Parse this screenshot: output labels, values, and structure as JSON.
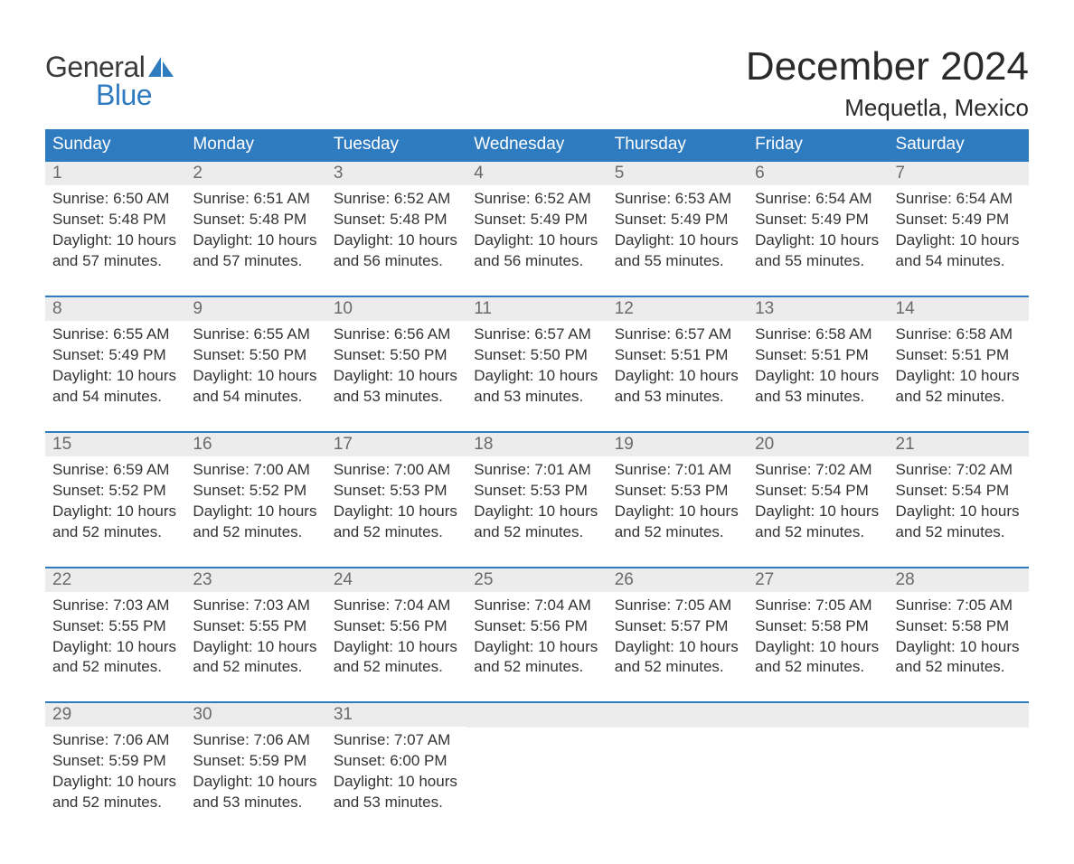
{
  "logo": {
    "text1": "General",
    "text2": "Blue",
    "accent_color": "#2f7bc0"
  },
  "title": "December 2024",
  "location": "Mequetla, Mexico",
  "colors": {
    "header_bg": "#2f7bc0",
    "header_text": "#ffffff",
    "daynum_bg": "#ececec",
    "daynum_text": "#6a6a6a",
    "body_text": "#333333",
    "row_border": "#2f7bc0",
    "page_bg": "#ffffff"
  },
  "typography": {
    "title_fontsize": 44,
    "location_fontsize": 26,
    "header_fontsize": 19,
    "daynum_fontsize": 19,
    "body_fontsize": 17,
    "logo_fontsize": 32
  },
  "weekdays": [
    "Sunday",
    "Monday",
    "Tuesday",
    "Wednesday",
    "Thursday",
    "Friday",
    "Saturday"
  ],
  "weeks": [
    [
      {
        "day": "1",
        "sunrise": "6:50 AM",
        "sunset": "5:48 PM",
        "daylight": "10 hours and 57 minutes."
      },
      {
        "day": "2",
        "sunrise": "6:51 AM",
        "sunset": "5:48 PM",
        "daylight": "10 hours and 57 minutes."
      },
      {
        "day": "3",
        "sunrise": "6:52 AM",
        "sunset": "5:48 PM",
        "daylight": "10 hours and 56 minutes."
      },
      {
        "day": "4",
        "sunrise": "6:52 AM",
        "sunset": "5:49 PM",
        "daylight": "10 hours and 56 minutes."
      },
      {
        "day": "5",
        "sunrise": "6:53 AM",
        "sunset": "5:49 PM",
        "daylight": "10 hours and 55 minutes."
      },
      {
        "day": "6",
        "sunrise": "6:54 AM",
        "sunset": "5:49 PM",
        "daylight": "10 hours and 55 minutes."
      },
      {
        "day": "7",
        "sunrise": "6:54 AM",
        "sunset": "5:49 PM",
        "daylight": "10 hours and 54 minutes."
      }
    ],
    [
      {
        "day": "8",
        "sunrise": "6:55 AM",
        "sunset": "5:49 PM",
        "daylight": "10 hours and 54 minutes."
      },
      {
        "day": "9",
        "sunrise": "6:55 AM",
        "sunset": "5:50 PM",
        "daylight": "10 hours and 54 minutes."
      },
      {
        "day": "10",
        "sunrise": "6:56 AM",
        "sunset": "5:50 PM",
        "daylight": "10 hours and 53 minutes."
      },
      {
        "day": "11",
        "sunrise": "6:57 AM",
        "sunset": "5:50 PM",
        "daylight": "10 hours and 53 minutes."
      },
      {
        "day": "12",
        "sunrise": "6:57 AM",
        "sunset": "5:51 PM",
        "daylight": "10 hours and 53 minutes."
      },
      {
        "day": "13",
        "sunrise": "6:58 AM",
        "sunset": "5:51 PM",
        "daylight": "10 hours and 53 minutes."
      },
      {
        "day": "14",
        "sunrise": "6:58 AM",
        "sunset": "5:51 PM",
        "daylight": "10 hours and 52 minutes."
      }
    ],
    [
      {
        "day": "15",
        "sunrise": "6:59 AM",
        "sunset": "5:52 PM",
        "daylight": "10 hours and 52 minutes."
      },
      {
        "day": "16",
        "sunrise": "7:00 AM",
        "sunset": "5:52 PM",
        "daylight": "10 hours and 52 minutes."
      },
      {
        "day": "17",
        "sunrise": "7:00 AM",
        "sunset": "5:53 PM",
        "daylight": "10 hours and 52 minutes."
      },
      {
        "day": "18",
        "sunrise": "7:01 AM",
        "sunset": "5:53 PM",
        "daylight": "10 hours and 52 minutes."
      },
      {
        "day": "19",
        "sunrise": "7:01 AM",
        "sunset": "5:53 PM",
        "daylight": "10 hours and 52 minutes."
      },
      {
        "day": "20",
        "sunrise": "7:02 AM",
        "sunset": "5:54 PM",
        "daylight": "10 hours and 52 minutes."
      },
      {
        "day": "21",
        "sunrise": "7:02 AM",
        "sunset": "5:54 PM",
        "daylight": "10 hours and 52 minutes."
      }
    ],
    [
      {
        "day": "22",
        "sunrise": "7:03 AM",
        "sunset": "5:55 PM",
        "daylight": "10 hours and 52 minutes."
      },
      {
        "day": "23",
        "sunrise": "7:03 AM",
        "sunset": "5:55 PM",
        "daylight": "10 hours and 52 minutes."
      },
      {
        "day": "24",
        "sunrise": "7:04 AM",
        "sunset": "5:56 PM",
        "daylight": "10 hours and 52 minutes."
      },
      {
        "day": "25",
        "sunrise": "7:04 AM",
        "sunset": "5:56 PM",
        "daylight": "10 hours and 52 minutes."
      },
      {
        "day": "26",
        "sunrise": "7:05 AM",
        "sunset": "5:57 PM",
        "daylight": "10 hours and 52 minutes."
      },
      {
        "day": "27",
        "sunrise": "7:05 AM",
        "sunset": "5:58 PM",
        "daylight": "10 hours and 52 minutes."
      },
      {
        "day": "28",
        "sunrise": "7:05 AM",
        "sunset": "5:58 PM",
        "daylight": "10 hours and 52 minutes."
      }
    ],
    [
      {
        "day": "29",
        "sunrise": "7:06 AM",
        "sunset": "5:59 PM",
        "daylight": "10 hours and 52 minutes."
      },
      {
        "day": "30",
        "sunrise": "7:06 AM",
        "sunset": "5:59 PM",
        "daylight": "10 hours and 53 minutes."
      },
      {
        "day": "31",
        "sunrise": "7:07 AM",
        "sunset": "6:00 PM",
        "daylight": "10 hours and 53 minutes."
      },
      null,
      null,
      null,
      null
    ]
  ],
  "labels": {
    "sunrise": "Sunrise: ",
    "sunset": "Sunset: ",
    "daylight": "Daylight: "
  }
}
